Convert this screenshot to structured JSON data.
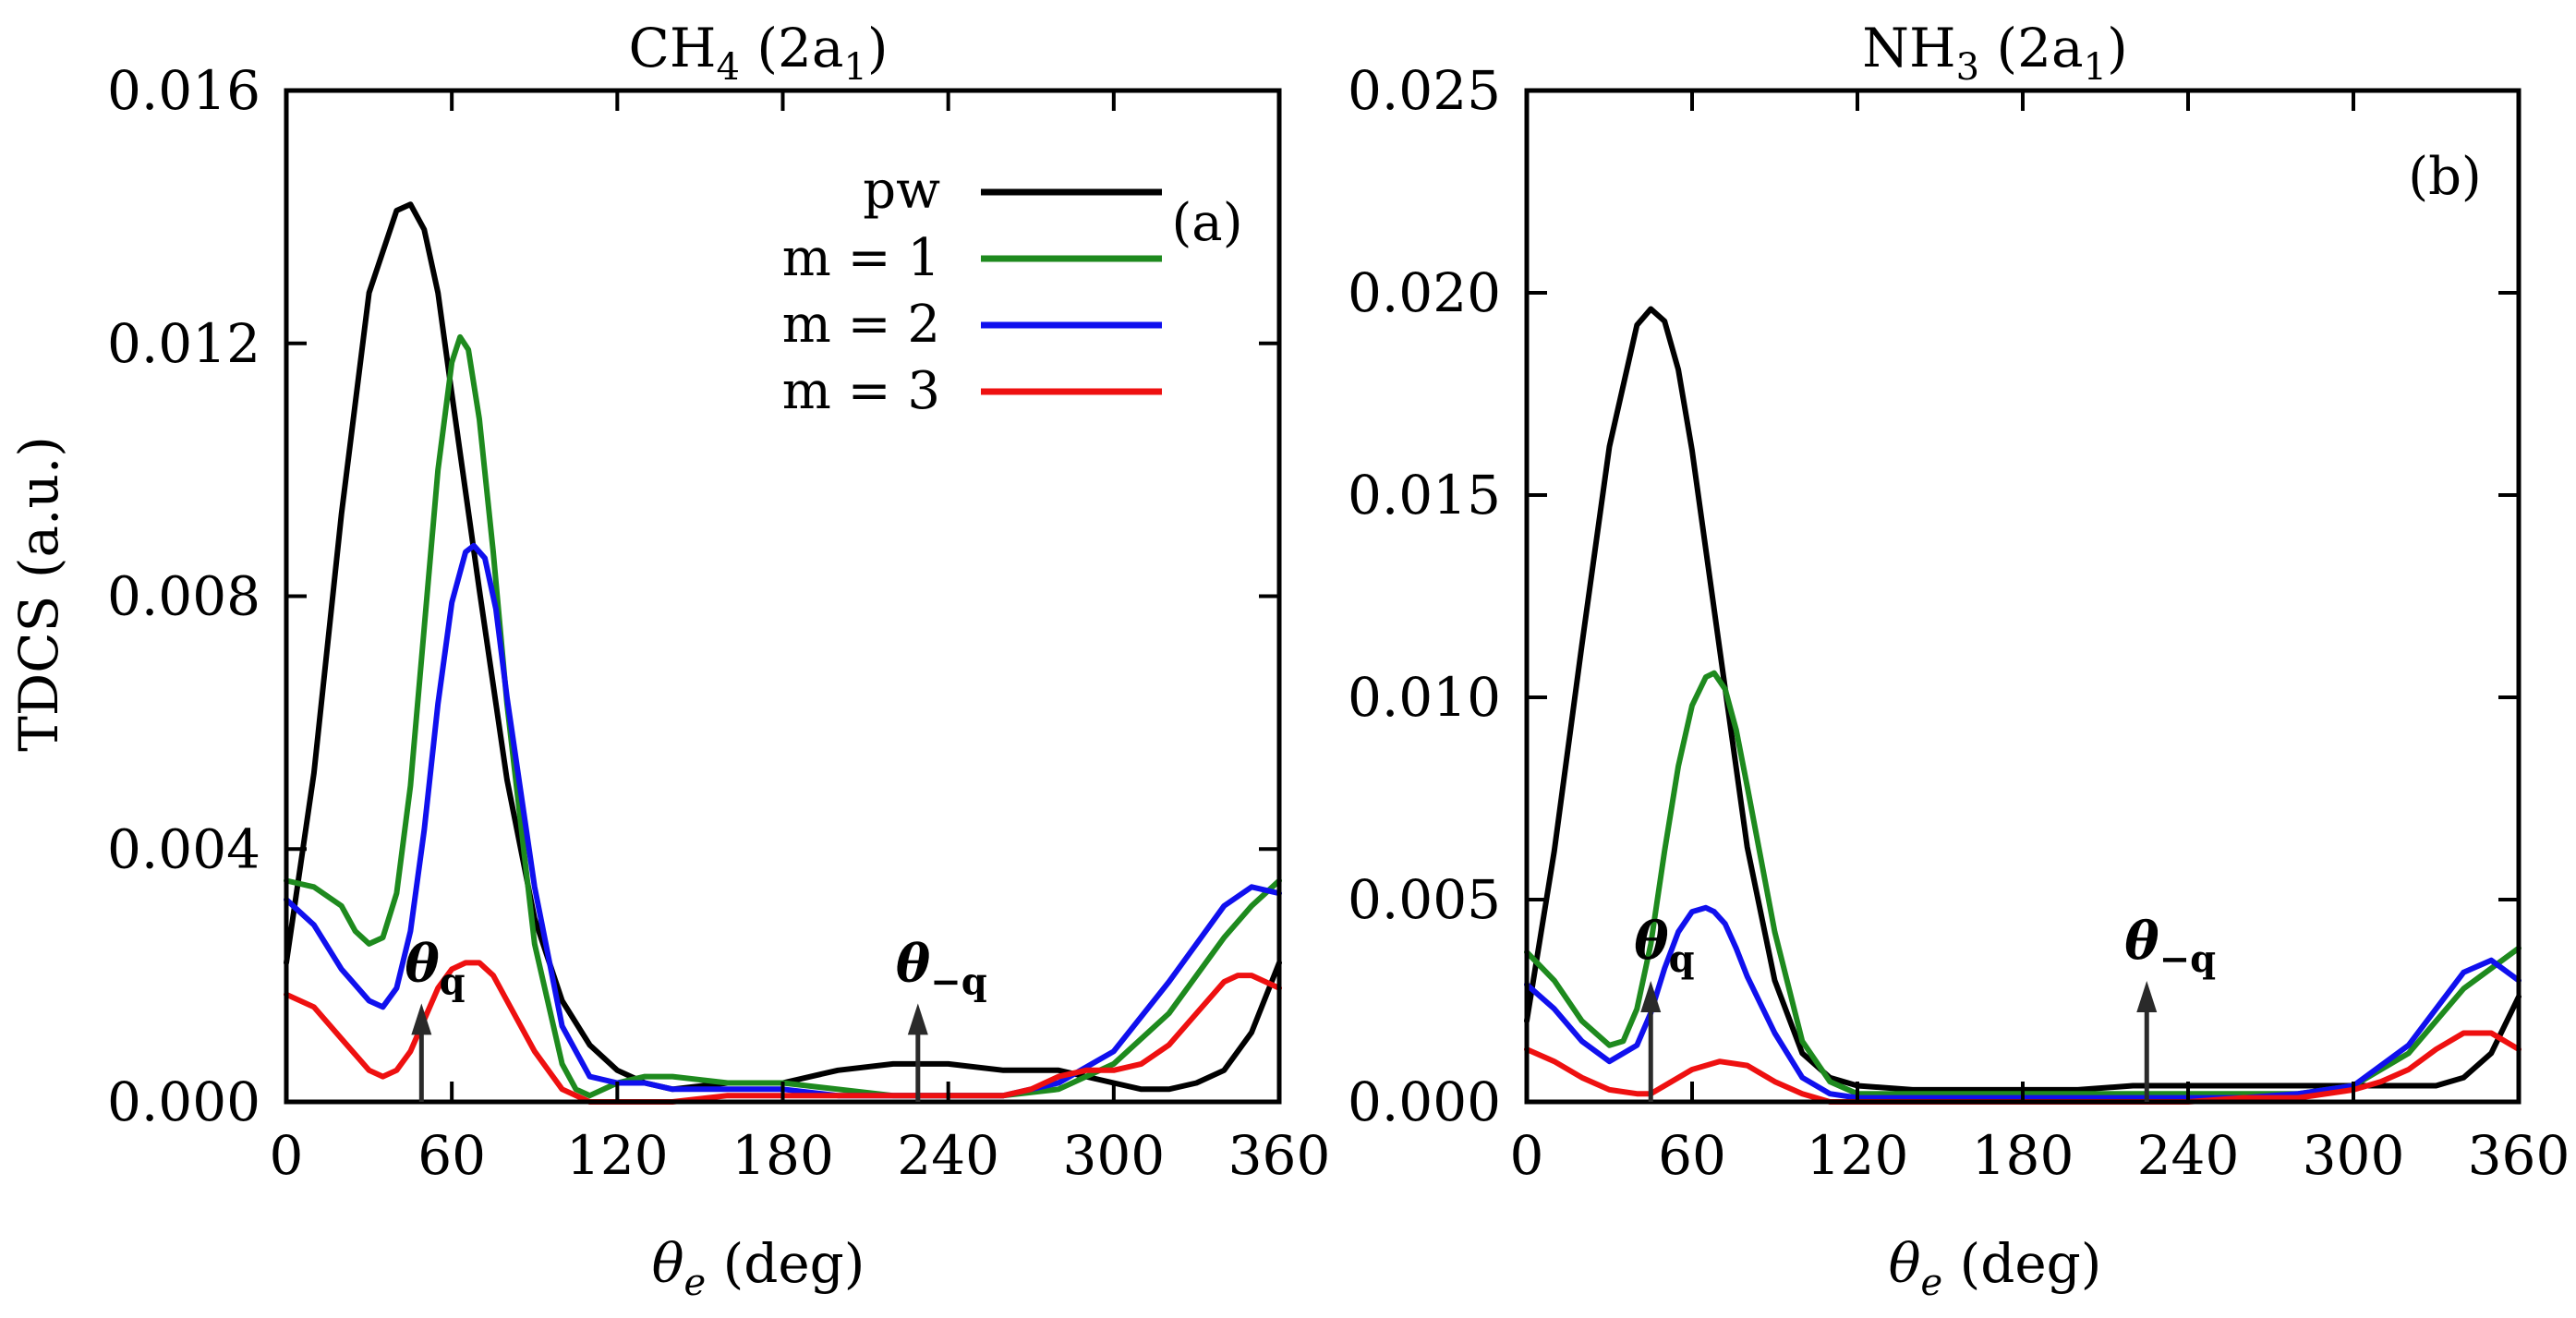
{
  "chart_data": [
    {
      "type": "line",
      "title": "CH4 (2a1)",
      "title_parts": {
        "main": "CH",
        "sub1": "4",
        "mid": " (2a",
        "sub2": "1",
        "end": ")"
      },
      "panel_label": "(a)",
      "xlabel": "θe (deg)",
      "xlabel_parts": {
        "theta": "θ",
        "sub": "e",
        "rest": " (deg)"
      },
      "ylabel": "TDCS (a.u.)",
      "xlim": [
        0,
        360
      ],
      "ylim": [
        0,
        0.016
      ],
      "xticks": [
        0,
        60,
        120,
        180,
        240,
        300,
        360
      ],
      "xtick_labels": [
        "0",
        "60",
        "120",
        "180",
        "240",
        "300",
        "360"
      ],
      "yticks": [
        0,
        0.004,
        0.008,
        0.012,
        0.016
      ],
      "ytick_labels": [
        "0.000",
        "0.004",
        "0.008",
        "0.012",
        "0.016"
      ],
      "legend": {
        "placement": "top-right",
        "entries": [
          "pw",
          "m = 1",
          "m = 2",
          "m = 3"
        ]
      },
      "annotations": [
        {
          "text": "θq",
          "theta": "θ",
          "sub": "q",
          "x": 49,
          "y_tip": 0.0015
        },
        {
          "text": "θ−q",
          "theta": "θ",
          "sub": "−q",
          "x": 229,
          "y_tip": 0.0015
        }
      ],
      "series": [
        {
          "name": "pw",
          "color": "#000000",
          "x": [
            0,
            10,
            20,
            30,
            40,
            45,
            50,
            55,
            60,
            70,
            80,
            90,
            100,
            110,
            120,
            130,
            140,
            160,
            180,
            200,
            220,
            240,
            260,
            280,
            300,
            310,
            320,
            330,
            340,
            350,
            360
          ],
          "y": [
            0.0022,
            0.0052,
            0.0093,
            0.0128,
            0.0141,
            0.0142,
            0.0138,
            0.0128,
            0.0112,
            0.0081,
            0.0051,
            0.0029,
            0.0016,
            0.0009,
            0.0005,
            0.0003,
            0.0002,
            0.0003,
            0.0003,
            0.0005,
            0.0006,
            0.0006,
            0.0005,
            0.0005,
            0.0003,
            0.0002,
            0.0002,
            0.0003,
            0.0005,
            0.0011,
            0.0022
          ]
        },
        {
          "name": "m = 1",
          "color": "#1e8a1e",
          "x": [
            0,
            10,
            20,
            25,
            30,
            35,
            40,
            45,
            50,
            55,
            60,
            63,
            66,
            70,
            75,
            80,
            90,
            100,
            105,
            110,
            120,
            130,
            140,
            160,
            180,
            200,
            220,
            240,
            260,
            280,
            300,
            320,
            340,
            350,
            360
          ],
          "y": [
            0.0035,
            0.0034,
            0.0031,
            0.0027,
            0.0025,
            0.0026,
            0.0033,
            0.005,
            0.0075,
            0.01,
            0.0117,
            0.0121,
            0.0119,
            0.0108,
            0.0087,
            0.0063,
            0.0025,
            0.0006,
            0.0002,
            0.0001,
            0.0003,
            0.0004,
            0.0004,
            0.0003,
            0.0003,
            0.0002,
            0.0001,
            0.0001,
            0.0001,
            0.0002,
            0.0006,
            0.0014,
            0.0026,
            0.0031,
            0.0035
          ]
        },
        {
          "name": "m = 2",
          "color": "#1010ee",
          "x": [
            0,
            10,
            20,
            30,
            35,
            40,
            45,
            50,
            55,
            60,
            65,
            68,
            72,
            76,
            80,
            90,
            100,
            110,
            120,
            130,
            140,
            160,
            180,
            200,
            220,
            240,
            260,
            280,
            300,
            320,
            340,
            350,
            360
          ],
          "y": [
            0.0032,
            0.0028,
            0.0021,
            0.0016,
            0.0015,
            0.0018,
            0.0027,
            0.0043,
            0.0063,
            0.0079,
            0.0087,
            0.0088,
            0.0086,
            0.0078,
            0.0064,
            0.0034,
            0.0012,
            0.0004,
            0.0003,
            0.0003,
            0.0002,
            0.0002,
            0.0002,
            0.0001,
            0.0001,
            0.0001,
            0.0001,
            0.0003,
            0.0008,
            0.0019,
            0.0031,
            0.0034,
            0.0033
          ]
        },
        {
          "name": "m = 3",
          "color": "#ee1010",
          "x": [
            0,
            10,
            20,
            30,
            35,
            40,
            45,
            50,
            55,
            60,
            65,
            70,
            75,
            80,
            90,
            100,
            110,
            120,
            130,
            140,
            160,
            180,
            200,
            220,
            240,
            260,
            270,
            280,
            290,
            300,
            310,
            320,
            330,
            340,
            345,
            350,
            360
          ],
          "y": [
            0.0017,
            0.0015,
            0.001,
            0.0005,
            0.0004,
            0.0005,
            0.0008,
            0.0013,
            0.0018,
            0.0021,
            0.0022,
            0.0022,
            0.002,
            0.0016,
            0.0008,
            0.0002,
            0.0,
            0.0,
            0.0,
            0.0,
            0.0001,
            0.0001,
            0.0001,
            0.0001,
            0.0001,
            0.0001,
            0.0002,
            0.0004,
            0.0005,
            0.0005,
            0.0006,
            0.0009,
            0.0014,
            0.0019,
            0.002,
            0.002,
            0.0018
          ]
        }
      ]
    },
    {
      "type": "line",
      "title": "NH3 (2a1)",
      "title_parts": {
        "main": "NH",
        "sub1": "3",
        "mid": " (2a",
        "sub2": "1",
        "end": ")"
      },
      "panel_label": "(b)",
      "xlabel": "θe (deg)",
      "xlabel_parts": {
        "theta": "θ",
        "sub": "e",
        "rest": " (deg)"
      },
      "ylabel": "",
      "xlim": [
        0,
        360
      ],
      "ylim": [
        0,
        0.025
      ],
      "xticks": [
        0,
        60,
        120,
        180,
        240,
        300,
        360
      ],
      "xtick_labels": [
        "0",
        "60",
        "120",
        "180",
        "240",
        "300",
        "360"
      ],
      "yticks": [
        0,
        0.005,
        0.01,
        0.015,
        0.02,
        0.025
      ],
      "ytick_labels": [
        "0.000",
        "0.005",
        "0.010",
        "0.015",
        "0.020",
        "0.025"
      ],
      "annotations": [
        {
          "text": "θq",
          "theta": "θ",
          "sub": "q",
          "x": 45,
          "y_tip": 0.0029
        },
        {
          "text": "θ−q",
          "theta": "θ",
          "sub": "−q",
          "x": 225,
          "y_tip": 0.0029
        }
      ],
      "series": [
        {
          "name": "pw",
          "color": "#000000",
          "x": [
            0,
            10,
            20,
            30,
            40,
            45,
            50,
            55,
            60,
            70,
            80,
            90,
            100,
            110,
            120,
            140,
            160,
            180,
            200,
            220,
            240,
            260,
            280,
            300,
            320,
            330,
            340,
            350,
            360
          ],
          "y": [
            0.002,
            0.0062,
            0.0113,
            0.0162,
            0.0192,
            0.0196,
            0.0193,
            0.0181,
            0.0161,
            0.0112,
            0.0063,
            0.003,
            0.0012,
            0.0006,
            0.0004,
            0.0003,
            0.0003,
            0.0003,
            0.0003,
            0.0004,
            0.0004,
            0.0004,
            0.0004,
            0.0004,
            0.0004,
            0.0004,
            0.0006,
            0.0012,
            0.0026
          ]
        },
        {
          "name": "m = 1",
          "color": "#1e8a1e",
          "x": [
            0,
            10,
            20,
            30,
            35,
            40,
            45,
            50,
            55,
            60,
            65,
            68,
            72,
            76,
            80,
            90,
            100,
            110,
            120,
            140,
            160,
            180,
            200,
            220,
            240,
            260,
            280,
            300,
            320,
            340,
            360
          ],
          "y": [
            0.0037,
            0.003,
            0.002,
            0.0014,
            0.0015,
            0.0023,
            0.0039,
            0.0062,
            0.0083,
            0.0098,
            0.0105,
            0.0106,
            0.0102,
            0.0092,
            0.0078,
            0.0042,
            0.0015,
            0.0005,
            0.0002,
            0.0002,
            0.0002,
            0.0002,
            0.0002,
            0.0002,
            0.0002,
            0.0002,
            0.0002,
            0.0004,
            0.0012,
            0.0028,
            0.0038
          ]
        },
        {
          "name": "m = 2",
          "color": "#1010ee",
          "x": [
            0,
            10,
            20,
            30,
            40,
            45,
            50,
            55,
            60,
            65,
            68,
            72,
            76,
            80,
            90,
            100,
            110,
            120,
            140,
            160,
            180,
            200,
            220,
            240,
            260,
            280,
            300,
            320,
            340,
            350,
            360
          ],
          "y": [
            0.0029,
            0.0023,
            0.0015,
            0.001,
            0.0014,
            0.0022,
            0.0033,
            0.0042,
            0.0047,
            0.0048,
            0.0047,
            0.0044,
            0.0038,
            0.0031,
            0.0017,
            0.0006,
            0.0002,
            0.0001,
            0.0001,
            0.0001,
            0.0001,
            0.0001,
            0.0001,
            0.0001,
            0.0001,
            0.0002,
            0.0004,
            0.0014,
            0.0032,
            0.0035,
            0.003
          ]
        },
        {
          "name": "m = 3",
          "color": "#ee1010",
          "x": [
            0,
            10,
            20,
            30,
            40,
            45,
            50,
            60,
            70,
            80,
            90,
            100,
            110,
            120,
            140,
            160,
            180,
            200,
            220,
            240,
            260,
            280,
            300,
            310,
            320,
            330,
            340,
            350,
            360
          ],
          "y": [
            0.0013,
            0.001,
            0.0006,
            0.0003,
            0.0002,
            0.0002,
            0.0004,
            0.0008,
            0.001,
            0.0009,
            0.0005,
            0.0002,
            0.0,
            0.0,
            0.0,
            0.0,
            0.0,
            0.0,
            0.0,
            0.0,
            0.0001,
            0.0001,
            0.0003,
            0.0005,
            0.0008,
            0.0013,
            0.0017,
            0.0017,
            0.0013
          ]
        }
      ]
    }
  ]
}
